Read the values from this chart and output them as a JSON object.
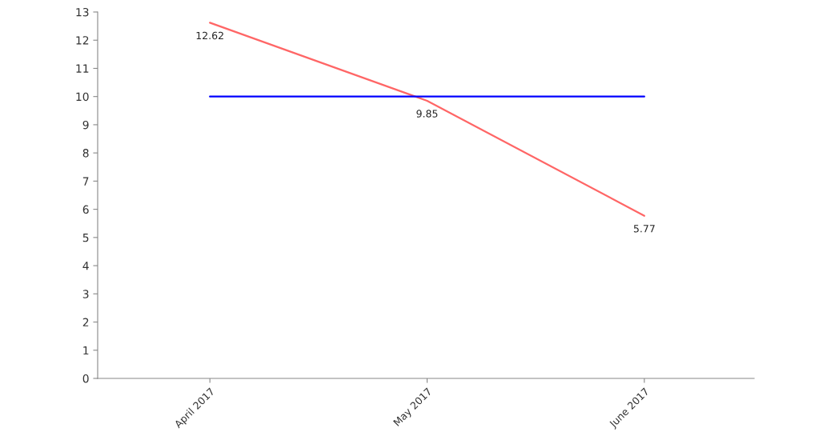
{
  "chart_data": {
    "type": "line",
    "categories": [
      "April 2017",
      "May 2017",
      "June 2017"
    ],
    "series": [
      {
        "color": "#ff6666",
        "values": [
          12.62,
          9.85,
          5.77
        ],
        "value_labels": [
          "12.62",
          "9.85",
          "5.77"
        ]
      },
      {
        "color": "#0000ff",
        "values": [
          10,
          10,
          10
        ]
      }
    ],
    "ylim": [
      0,
      13
    ],
    "yticks": [
      0,
      1,
      2,
      3,
      4,
      5,
      6,
      7,
      8,
      9,
      10,
      11,
      12,
      13
    ],
    "marker": "none",
    "line_style": "solid"
  }
}
